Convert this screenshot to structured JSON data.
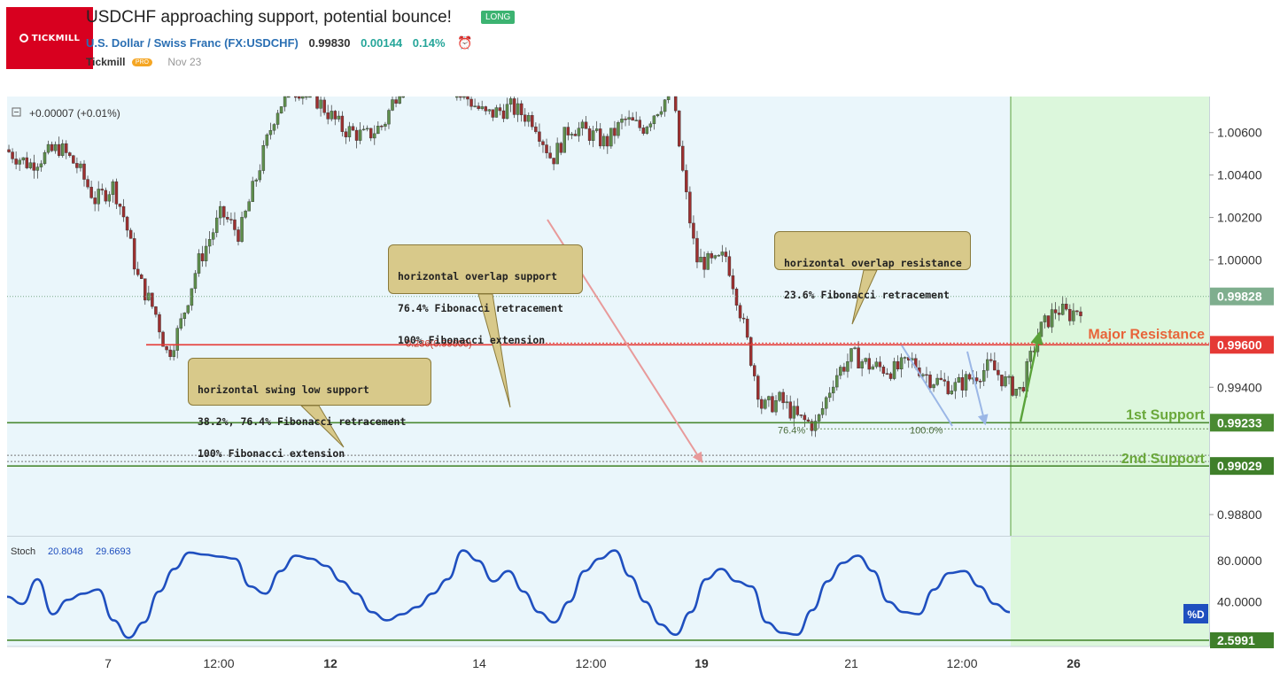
{
  "header": {
    "logo_text": "TICKMILL",
    "title": "USDCHF approaching support, potential bounce!",
    "badge": "LONG",
    "symbol_name": "U.S. Dollar / Swiss Franc",
    "symbol_code": "(FX:USDCHF)",
    "price": "0.99830",
    "change": "0.00144",
    "change_pct": "0.14%",
    "author": "Tickmill",
    "pro_badge": "PRO",
    "date": "Nov 23"
  },
  "colors": {
    "bg_blue": "#eaf6fb",
    "bg_green": "#dcf7dc",
    "resistance": "#e53935",
    "support": "#4a8a32",
    "candle_up": "#5e8f4c",
    "candle_down": "#9c2f2f",
    "stoch": "#1f4fbf",
    "arrow_red": "#e89a9a",
    "arrow_blue": "#9bb7e6",
    "arrow_green": "#5aa33a"
  },
  "chart_data": {
    "type": "candlestick",
    "symbol": "USDCHF",
    "legend_change": "+0.00007 (+0.01%)",
    "y_ticks": [
      "1.00600",
      "1.00400",
      "1.00200",
      "1.00000",
      "0.99400",
      "0.98800"
    ],
    "y_range": [
      0.987,
      1.0077
    ],
    "last_price": "0.99828",
    "last_value": 0.99828,
    "x_ticks": [
      "7",
      "12:00",
      "12",
      "14",
      "12:00",
      "19",
      "21",
      "12:00",
      "26"
    ],
    "x_ticks_bold": [
      false,
      false,
      true,
      false,
      false,
      true,
      false,
      false,
      true
    ],
    "levels": [
      {
        "name": "Major Resistance",
        "value": 0.996,
        "label": "0.99600"
      },
      {
        "name": "1st Support",
        "value": 0.99233,
        "label": "0.99233"
      },
      {
        "name": "2nd Support",
        "value": 0.99029,
        "label": "0.99029"
      }
    ],
    "fib_labels": {
      "resistance_fib": "0.236(0.99606)",
      "support_fib_left": "76.4%",
      "support_fib_right": "100.0%"
    },
    "price_path": [
      [
        0,
        1.0052
      ],
      [
        0.02,
        1.0045
      ],
      [
        0.045,
        1.0053
      ],
      [
        0.06,
        1.0044
      ],
      [
        0.075,
        1.0028
      ],
      [
        0.09,
        1.0035
      ],
      [
        0.1,
        1.0018
      ],
      [
        0.11,
        0.9992
      ],
      [
        0.125,
        0.9975
      ],
      [
        0.135,
        0.9955
      ],
      [
        0.145,
        0.9968
      ],
      [
        0.16,
        0.9998
      ],
      [
        0.18,
        1.0022
      ],
      [
        0.195,
        1.0012
      ],
      [
        0.21,
        1.0041
      ],
      [
        0.225,
        1.007
      ],
      [
        0.24,
        1.0082
      ],
      [
        0.26,
        1.0075
      ],
      [
        0.28,
        1.0062
      ],
      [
        0.3,
        1.0058
      ],
      [
        0.315,
        1.0064
      ],
      [
        0.33,
        1.0085
      ],
      [
        0.36,
        1.0088
      ],
      [
        0.385,
        1.0076
      ],
      [
        0.4,
        1.0068
      ],
      [
        0.42,
        1.0072
      ],
      [
        0.44,
        1.0066
      ],
      [
        0.455,
        1.0047
      ],
      [
        0.47,
        1.0063
      ],
      [
        0.485,
        1.006
      ],
      [
        0.5,
        1.0055
      ],
      [
        0.515,
        1.0066
      ],
      [
        0.53,
        1.0062
      ],
      [
        0.545,
        1.0073
      ],
      [
        0.555,
        1.0079
      ],
      [
        0.565,
        1.0036
      ],
      [
        0.575,
        1.0
      ],
      [
        0.59,
        0.9998
      ],
      [
        0.6,
        1.0002
      ],
      [
        0.61,
        0.998
      ],
      [
        0.62,
        0.9955
      ],
      [
        0.63,
        0.993
      ],
      [
        0.645,
        0.9934
      ],
      [
        0.66,
        0.9925
      ],
      [
        0.675,
        0.9922
      ],
      [
        0.69,
        0.9945
      ],
      [
        0.705,
        0.9955
      ],
      [
        0.72,
        0.995
      ],
      [
        0.74,
        0.9948
      ],
      [
        0.755,
        0.9952
      ],
      [
        0.77,
        0.9944
      ],
      [
        0.79,
        0.994
      ],
      [
        0.805,
        0.9945
      ],
      [
        0.82,
        0.995
      ],
      [
        0.835,
        0.9941
      ],
      [
        0.845,
        0.9938
      ],
      [
        0.86,
        0.9966
      ],
      [
        0.875,
        0.9977
      ],
      [
        0.885,
        0.9974
      ],
      [
        0.895,
        0.9978
      ]
    ],
    "stoch": {
      "label": "Stoch",
      "k_value": "20.8048",
      "d_value": "29.6693",
      "y_ticks": [
        "80.0000",
        "40.0000"
      ],
      "y_range": [
        0,
        100
      ],
      "last_label": "2.5991",
      "last_value": 2.5991,
      "d_tag": "%D",
      "values": [
        45,
        38,
        62,
        28,
        42,
        48,
        52,
        22,
        5,
        20,
        50,
        72,
        88,
        86,
        84,
        82,
        55,
        48,
        70,
        85,
        82,
        75,
        60,
        48,
        30,
        22,
        28,
        35,
        48,
        62,
        90,
        80,
        60,
        70,
        50,
        30,
        20,
        40,
        70,
        82,
        90,
        65,
        40,
        18,
        8,
        30,
        62,
        72,
        60,
        55,
        20,
        10,
        8,
        32,
        60,
        78,
        85,
        70,
        40,
        30,
        28,
        52,
        68,
        70,
        55,
        38,
        30
      ]
    }
  },
  "annotations": {
    "overlap_support": [
      "horizontal overlap support",
      "76.4% Fibonacci retracement",
      "100% Fibonacci extension"
    ],
    "overlap_resistance": [
      "horizontal overlap resistance",
      "23.6% Fibonacci retracement"
    ],
    "swing_low": [
      "horizontal swing low support",
      "38.2%, 76.4% Fibonacci retracement",
      "100% Fibonacci extension"
    ]
  }
}
